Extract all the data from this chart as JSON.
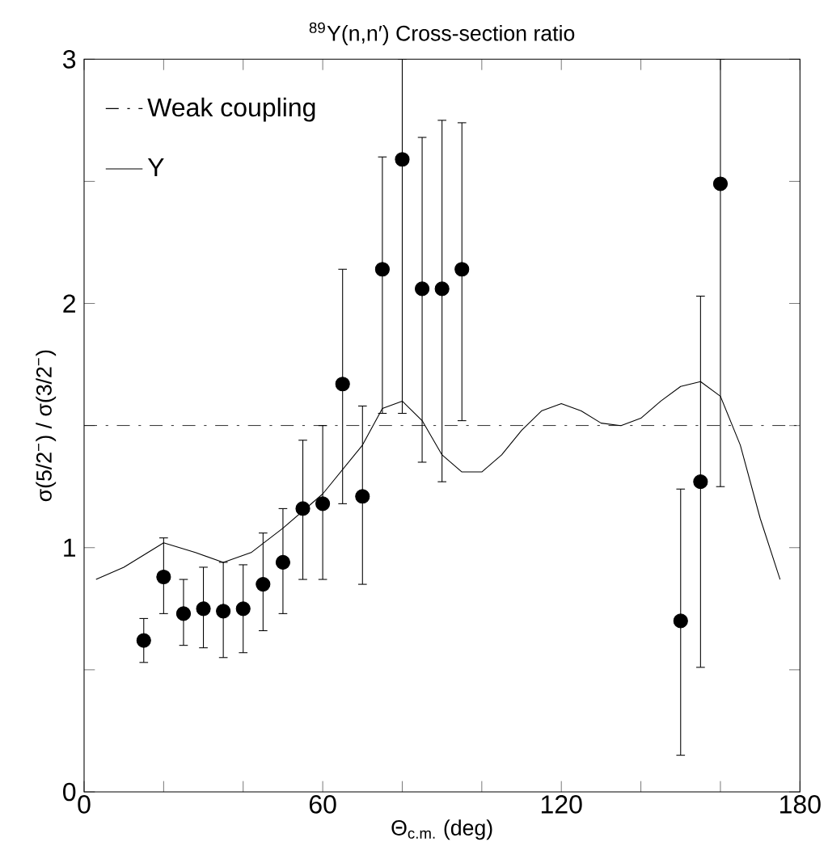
{
  "chart_data": {
    "type": "scatter",
    "title": "$^{89}$Y(n,n′) Cross-section ratio",
    "xlabel": "Θ$_{c.m.}$ (deg)",
    "ylabel": "σ(5/2$^{−}$) / σ(3/2$^{−}$)",
    "xlim": [
      0,
      180
    ],
    "ylim": [
      0,
      3
    ],
    "xticks": [
      0,
      {
        "value": 20,
        "label": null
      },
      {
        "value": 40,
        "label": null
      },
      60,
      {
        "value": 80,
        "label": null
      },
      {
        "value": 100,
        "label": null
      },
      120,
      {
        "value": 140,
        "label": null
      },
      {
        "value": 160,
        "label": null
      },
      180
    ],
    "yticks": [
      0,
      {
        "value": 0.5,
        "label": null
      },
      1,
      {
        "value": 1.5,
        "label": null
      },
      2,
      {
        "value": 2.5,
        "label": null
      },
      3
    ],
    "grid": false,
    "legend": "top left",
    "series": [
      {
        "type": "line",
        "name": "Weak coupling",
        "color": "#000000",
        "line_style": "dashed",
        "marker": "none",
        "x": [
          0,
          180
        ],
        "values": [
          1.5,
          1.5
        ]
      },
      {
        "type": "line",
        "name": "Y",
        "color": "#000000",
        "line_style": "solid",
        "marker": "none",
        "x": [
          3,
          10,
          20,
          28,
          35,
          42,
          50,
          60,
          70,
          75,
          80,
          85,
          90,
          95,
          100,
          105,
          110,
          115,
          120,
          125,
          130,
          135,
          140,
          145,
          150,
          155,
          160,
          165,
          170,
          175
        ],
        "values": [
          0.87,
          0.92,
          1.02,
          0.98,
          0.94,
          0.98,
          1.08,
          1.22,
          1.42,
          1.57,
          1.6,
          1.52,
          1.38,
          1.31,
          1.31,
          1.38,
          1.48,
          1.56,
          1.59,
          1.56,
          1.51,
          1.5,
          1.53,
          1.6,
          1.66,
          1.68,
          1.62,
          1.42,
          1.12,
          0.87
        ]
      },
      {
        "color": "#000000",
        "marker": "circle",
        "x": [
          15,
          20,
          25,
          30,
          35,
          40,
          45,
          50,
          55,
          60,
          65,
          70,
          75,
          80,
          85,
          90,
          95,
          150,
          155,
          160
        ],
        "values": [
          0.62,
          0.88,
          0.73,
          0.75,
          0.74,
          0.75,
          0.85,
          0.94,
          1.16,
          1.18,
          1.67,
          1.21,
          2.14,
          2.59,
          2.06,
          2.06,
          2.14,
          0.7,
          1.27,
          2.49
        ],
        "errors": [
          [
            0.53,
            0.71
          ],
          [
            0.73,
            1.04
          ],
          [
            0.6,
            0.87
          ],
          [
            0.59,
            0.92
          ],
          [
            0.55,
            0.94
          ],
          [
            0.57,
            0.93
          ],
          [
            0.66,
            1.06
          ],
          [
            0.73,
            1.16
          ],
          [
            0.87,
            1.44
          ],
          [
            0.87,
            1.5
          ],
          [
            1.18,
            2.14
          ],
          [
            0.85,
            1.58
          ],
          [
            1.55,
            2.6
          ],
          [
            1.55,
            3.0
          ],
          [
            1.35,
            2.68
          ],
          [
            1.27,
            2.75
          ],
          [
            1.52,
            2.74
          ],
          [
            0.15,
            1.24
          ],
          [
            0.51,
            2.03
          ],
          [
            1.25,
            3.0
          ]
        ]
      }
    ]
  }
}
